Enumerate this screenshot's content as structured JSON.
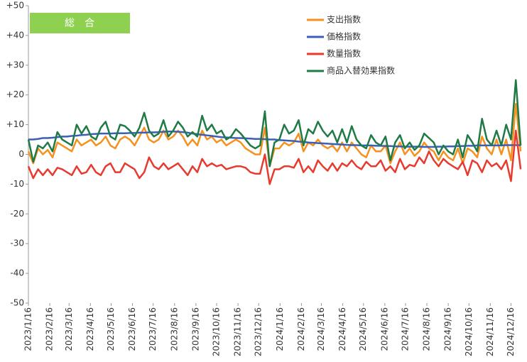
{
  "chart_data": {
    "type": "line",
    "title": "総　合",
    "x": [
      "2023/1/16",
      "2023/1/23",
      "2023/1/30",
      "2023/2/6",
      "2023/2/13",
      "2023/2/20",
      "2023/2/27",
      "2023/3/6",
      "2023/3/13",
      "2023/3/20",
      "2023/3/27",
      "2023/4/3",
      "2023/4/10",
      "2023/4/17",
      "2023/4/24",
      "2023/5/1",
      "2023/5/8",
      "2023/5/15",
      "2023/5/22",
      "2023/5/29",
      "2023/6/5",
      "2023/6/12",
      "2023/6/19",
      "2023/6/26",
      "2023/7/3",
      "2023/7/10",
      "2023/7/17",
      "2023/7/24",
      "2023/7/31",
      "2023/8/7",
      "2023/8/14",
      "2023/8/21",
      "2023/8/28",
      "2023/9/4",
      "2023/9/11",
      "2023/9/18",
      "2023/9/25",
      "2023/10/2",
      "2023/10/9",
      "2023/10/16",
      "2023/10/23",
      "2023/10/30",
      "2023/11/6",
      "2023/11/13",
      "2023/11/20",
      "2023/11/27",
      "2023/12/4",
      "2023/12/11",
      "2023/12/18",
      "2023/12/25",
      "2024/1/1",
      "2024/1/8",
      "2024/1/15",
      "2024/1/22",
      "2024/1/29",
      "2024/2/5",
      "2024/2/12",
      "2024/2/19",
      "2024/2/26",
      "2024/3/4",
      "2024/3/11",
      "2024/3/18",
      "2024/3/25",
      "2024/4/1",
      "2024/4/8",
      "2024/4/15",
      "2024/4/22",
      "2024/4/29",
      "2024/5/6",
      "2024/5/13",
      "2024/5/20",
      "2024/5/27",
      "2024/6/3",
      "2024/6/10",
      "2024/6/17",
      "2024/6/24",
      "2024/7/1",
      "2024/7/8",
      "2024/7/15",
      "2024/7/22",
      "2024/7/29",
      "2024/8/5",
      "2024/8/12",
      "2024/8/19",
      "2024/8/26",
      "2024/9/2",
      "2024/9/9",
      "2024/9/16",
      "2024/9/23",
      "2024/9/30",
      "2024/10/7",
      "2024/10/14",
      "2024/10/21",
      "2024/10/28",
      "2024/11/4",
      "2024/11/11",
      "2024/11/18",
      "2024/11/25",
      "2024/12/2",
      "2024/12/9",
      "2024/12/16",
      "2024/12/23",
      "2024/12/30"
    ],
    "xlim": [
      "2023/1/16",
      "2025/1/1"
    ],
    "xticks": [
      "2023/1/16",
      "2023/2/16",
      "2023/3/16",
      "2023/4/16",
      "2023/5/16",
      "2023/6/16",
      "2023/7/16",
      "2023/8/16",
      "2023/9/16",
      "2023/10/16",
      "2023/11/16",
      "2023/12/16",
      "2024/1/16",
      "2024/2/16",
      "2024/3/16",
      "2024/4/16",
      "2024/5/16",
      "2024/6/16",
      "2024/7/16",
      "2024/8/16",
      "2024/9/16",
      "2024/10/16",
      "2024/11/16",
      "2024/12/16"
    ],
    "ylim": [
      -50,
      50
    ],
    "yticks": [
      {
        "value": 50,
        "label": "+50"
      },
      {
        "value": 40,
        "label": "+40"
      },
      {
        "value": 30,
        "label": "+30"
      },
      {
        "value": 20,
        "label": "+20"
      },
      {
        "value": 10,
        "label": "+10"
      },
      0,
      -10,
      -20,
      -30,
      -40,
      -50
    ],
    "legend": "upper right",
    "series": [
      {
        "name": "支出指数",
        "color": "#f5911e",
        "values": [
          1,
          -3,
          2,
          0,
          1.5,
          -1,
          4,
          3,
          2,
          1,
          5,
          3,
          4,
          5,
          3,
          4,
          6,
          3,
          2,
          5,
          6,
          5,
          3,
          6,
          9,
          5,
          4,
          5,
          8,
          5,
          6,
          8,
          6,
          3,
          5,
          3,
          8,
          5,
          6,
          4,
          5,
          3,
          4,
          5,
          4,
          2,
          1,
          0,
          0,
          9,
          -4,
          2,
          2,
          4,
          3,
          4,
          7,
          1,
          4,
          3,
          5,
          3,
          2,
          3,
          1,
          4,
          1,
          4,
          2,
          0,
          -1,
          3,
          1,
          1,
          3,
          -3,
          1,
          4,
          0,
          2,
          -0.5,
          1,
          4,
          2,
          1,
          -2,
          1,
          -1,
          -2,
          2,
          -3,
          2,
          1,
          -1,
          6,
          2,
          0,
          5,
          0,
          5,
          -2,
          17,
          1
        ]
      },
      {
        "name": "価格指数",
        "color": "#3a5fb8",
        "values": [
          5,
          5,
          5.2,
          5.5,
          5.5,
          5.6,
          5.8,
          6,
          6,
          6.2,
          6.3,
          6.5,
          6.6,
          6.8,
          6.9,
          7,
          7,
          7,
          7.1,
          7.1,
          7.1,
          7.2,
          7.2,
          7.3,
          7.3,
          7.4,
          7.4,
          7.5,
          7.6,
          7.7,
          7.7,
          7.6,
          7.5,
          7.3,
          7,
          6.8,
          6.6,
          6.4,
          6.2,
          6,
          5.8,
          5.7,
          5.6,
          5.5,
          5.5,
          5.4,
          5.3,
          5.2,
          5.2,
          5.1,
          5,
          5,
          4.8,
          4.7,
          4.6,
          4.5,
          4.3,
          4.2,
          4,
          3.9,
          3.8,
          3.7,
          3.6,
          3.5,
          3.4,
          3.3,
          3.2,
          3.1,
          3.1,
          3,
          3,
          3,
          2.9,
          2.9,
          2.8,
          2.8,
          2.7,
          2.7,
          2.6,
          2.6,
          2.6,
          2.6,
          2.5,
          2.5,
          2.5,
          2.6,
          2.6,
          2.7,
          2.7,
          2.8,
          2.8,
          2.9,
          2.9,
          3,
          3,
          3,
          3,
          3,
          3,
          3.1,
          3.1,
          3.1,
          3.1
        ]
      },
      {
        "name": "数量指数",
        "color": "#e83a2e",
        "values": [
          -4,
          -8,
          -5,
          -7,
          -5,
          -7,
          -4.5,
          -5,
          -6,
          -7,
          -4,
          -6.5,
          -6,
          -3.5,
          -6,
          -7,
          -4,
          -3,
          -6,
          -6,
          -3,
          -4,
          -5,
          -8,
          -6,
          -1,
          -4,
          -5,
          -3,
          -5,
          -4,
          -3,
          -5,
          -7,
          -4,
          -6,
          -1.5,
          -4,
          -3,
          -4,
          -3.5,
          -5,
          -4.5,
          -4,
          -4,
          -4.5,
          -6,
          -6.5,
          -6.5,
          0,
          -10,
          -5,
          -5,
          -4,
          -4,
          -4.5,
          -1.5,
          -6,
          -4,
          -6,
          -2,
          -4,
          -5.5,
          -3,
          -5.5,
          -3,
          -4,
          -2,
          -4,
          -5,
          -2.5,
          -4,
          -4,
          -2,
          -5.5,
          -4,
          -6,
          -1.5,
          -5,
          -3.5,
          -4,
          -1,
          -3,
          1,
          -2,
          -4,
          -1.5,
          -3,
          -4,
          -5,
          -2.5,
          -7,
          -2,
          -3,
          -6,
          -2,
          -4,
          -3,
          -5,
          -2,
          -9,
          8,
          -5
        ]
      },
      {
        "name": "商品入替効果指数",
        "color": "#1f7a46",
        "values": [
          5,
          -2.5,
          3,
          2,
          4,
          1,
          7.5,
          5,
          4,
          3,
          10,
          7,
          9.5,
          6,
          5,
          9,
          11,
          6,
          5,
          10,
          9.5,
          8,
          6,
          9,
          14,
          8,
          6,
          7,
          11.5,
          6,
          8,
          11,
          9,
          6,
          7.5,
          6,
          13,
          8,
          10,
          7,
          8,
          5,
          6,
          8.5,
          7,
          5,
          3,
          2,
          3,
          14.5,
          -4,
          4,
          5,
          10,
          7,
          8,
          11.5,
          3,
          8.5,
          7,
          11,
          8,
          6,
          8,
          4,
          8.5,
          4,
          9.5,
          5,
          3,
          2,
          6.5,
          4,
          3,
          6,
          -2,
          4,
          6.5,
          2,
          4,
          1.5,
          3,
          7,
          5.5,
          4,
          0,
          3,
          1,
          0,
          5,
          -1,
          6.5,
          4,
          1,
          12,
          5,
          3,
          8,
          3,
          10,
          5,
          25,
          3
        ]
      }
    ]
  }
}
